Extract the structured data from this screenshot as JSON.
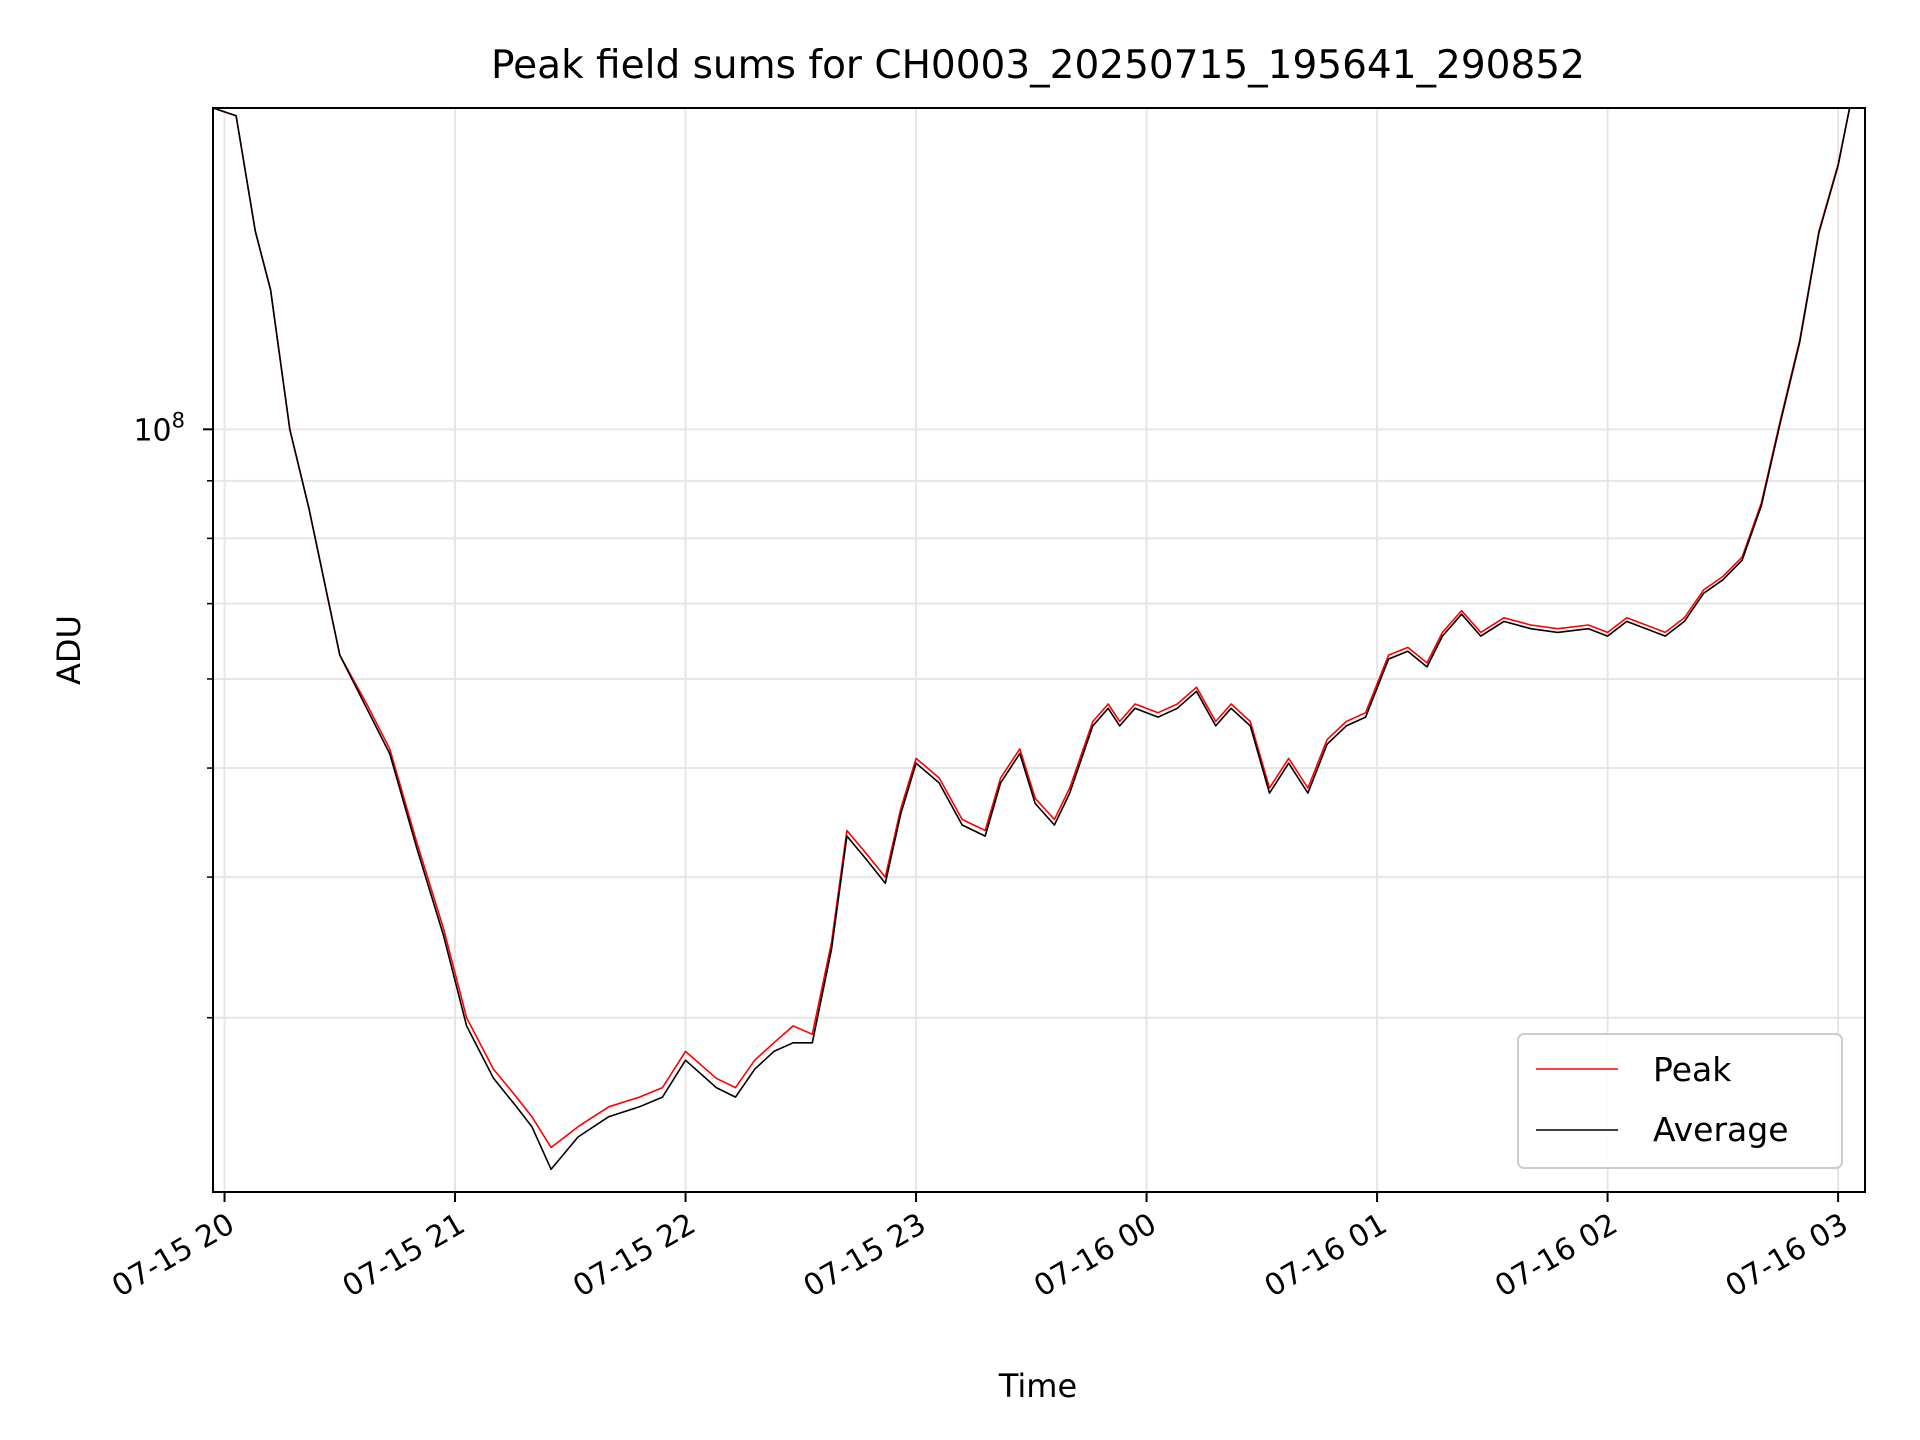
{
  "chart_data": {
    "type": "line",
    "title": "Peak field sums for CH0003_20250715_195641_290852",
    "xlabel": "Time",
    "ylabel": "ADU",
    "y_scale": "log",
    "ylim": [
      21000000,
      193000000
    ],
    "xlim": [
      "2025-07-15 19:57",
      "2025-07-16 03:07"
    ],
    "x_tick_labels": [
      "07-15 20",
      "07-15 21",
      "07-15 22",
      "07-15 23",
      "07-16 00",
      "07-16 01",
      "07-16 02",
      "07-16 03"
    ],
    "x_tick_values": [
      "2025-07-15 20:00",
      "2025-07-15 21:00",
      "2025-07-15 22:00",
      "2025-07-15 23:00",
      "2025-07-16 00:00",
      "2025-07-16 01:00",
      "2025-07-16 02:00",
      "2025-07-16 03:00"
    ],
    "y_tick_labels": [
      {
        "base": "10",
        "exp": "8",
        "value": 100000000
      }
    ],
    "y_minor_ticks": [
      30000000,
      40000000,
      50000000,
      60000000,
      70000000,
      80000000,
      90000000,
      200000000
    ],
    "grid": true,
    "legend_position": "bottom-right",
    "series": [
      {
        "name": "Peak",
        "color": "#ff0000",
        "points": [
          [
            "2025-07-15 19:57",
            193000000
          ],
          [
            "2025-07-15 20:03",
            190000000
          ],
          [
            "2025-07-15 20:08",
            150000000
          ],
          [
            "2025-07-15 20:12",
            133000000
          ],
          [
            "2025-07-15 20:17",
            100000000
          ],
          [
            "2025-07-15 20:22",
            85000000
          ],
          [
            "2025-07-15 20:30",
            63000000
          ],
          [
            "2025-07-15 20:37",
            57000000
          ],
          [
            "2025-07-15 20:43",
            52000000
          ],
          [
            "2025-07-15 20:50",
            43000000
          ],
          [
            "2025-07-15 20:57",
            36000000
          ],
          [
            "2025-07-15 21:03",
            30000000
          ],
          [
            "2025-07-15 21:10",
            27000000
          ],
          [
            "2025-07-15 21:16",
            25500000
          ],
          [
            "2025-07-15 21:20",
            24500000
          ],
          [
            "2025-07-15 21:25",
            23000000
          ],
          [
            "2025-07-15 21:32",
            24000000
          ],
          [
            "2025-07-15 21:40",
            25000000
          ],
          [
            "2025-07-15 21:48",
            25500000
          ],
          [
            "2025-07-15 21:54",
            26000000
          ],
          [
            "2025-07-15 22:00",
            28000000
          ],
          [
            "2025-07-15 22:08",
            26500000
          ],
          [
            "2025-07-15 22:13",
            26000000
          ],
          [
            "2025-07-15 22:18",
            27500000
          ],
          [
            "2025-07-15 22:23",
            28500000
          ],
          [
            "2025-07-15 22:28",
            29500000
          ],
          [
            "2025-07-15 22:33",
            29000000
          ],
          [
            "2025-07-15 22:38",
            35000000
          ],
          [
            "2025-07-15 22:42",
            44000000
          ],
          [
            "2025-07-15 22:47",
            42000000
          ],
          [
            "2025-07-15 22:52",
            40000000
          ],
          [
            "2025-07-15 22:56",
            46000000
          ],
          [
            "2025-07-15 23:00",
            51000000
          ],
          [
            "2025-07-15 23:06",
            49000000
          ],
          [
            "2025-07-15 23:12",
            45000000
          ],
          [
            "2025-07-15 23:18",
            44000000
          ],
          [
            "2025-07-15 23:22",
            49000000
          ],
          [
            "2025-07-15 23:27",
            52000000
          ],
          [
            "2025-07-15 23:31",
            47000000
          ],
          [
            "2025-07-15 23:36",
            45000000
          ],
          [
            "2025-07-15 23:40",
            48000000
          ],
          [
            "2025-07-15 23:46",
            55000000
          ],
          [
            "2025-07-15 23:50",
            57000000
          ],
          [
            "2025-07-15 23:53",
            55000000
          ],
          [
            "2025-07-15 23:57",
            57000000
          ],
          [
            "2025-07-16 00:03",
            56000000
          ],
          [
            "2025-07-16 00:08",
            57000000
          ],
          [
            "2025-07-16 00:13",
            59000000
          ],
          [
            "2025-07-16 00:18",
            55000000
          ],
          [
            "2025-07-16 00:22",
            57000000
          ],
          [
            "2025-07-16 00:27",
            55000000
          ],
          [
            "2025-07-16 00:32",
            48000000
          ],
          [
            "2025-07-16 00:37",
            51000000
          ],
          [
            "2025-07-16 00:42",
            48000000
          ],
          [
            "2025-07-16 00:47",
            53000000
          ],
          [
            "2025-07-16 00:52",
            55000000
          ],
          [
            "2025-07-16 00:57",
            56000000
          ],
          [
            "2025-07-16 01:03",
            63000000
          ],
          [
            "2025-07-16 01:08",
            64000000
          ],
          [
            "2025-07-16 01:13",
            62000000
          ],
          [
            "2025-07-16 01:17",
            66000000
          ],
          [
            "2025-07-16 01:22",
            69000000
          ],
          [
            "2025-07-16 01:27",
            66000000
          ],
          [
            "2025-07-16 01:33",
            68000000
          ],
          [
            "2025-07-16 01:40",
            67000000
          ],
          [
            "2025-07-16 01:47",
            66500000
          ],
          [
            "2025-07-16 01:55",
            67000000
          ],
          [
            "2025-07-16 02:00",
            66000000
          ],
          [
            "2025-07-16 02:05",
            68000000
          ],
          [
            "2025-07-16 02:10",
            67000000
          ],
          [
            "2025-07-16 02:15",
            66000000
          ],
          [
            "2025-07-16 02:20",
            68000000
          ],
          [
            "2025-07-16 02:25",
            72000000
          ],
          [
            "2025-07-16 02:30",
            74000000
          ],
          [
            "2025-07-16 02:35",
            77000000
          ],
          [
            "2025-07-16 02:40",
            86000000
          ],
          [
            "2025-07-16 02:45",
            102000000
          ],
          [
            "2025-07-16 02:50",
            120000000
          ],
          [
            "2025-07-16 02:55",
            150000000
          ],
          [
            "2025-07-16 03:00",
            172000000
          ],
          [
            "2025-07-16 03:03",
            193000000
          ],
          [
            "2025-07-16 03:07",
            193000000
          ]
        ]
      },
      {
        "name": "Average",
        "color": "#000000",
        "points": [
          [
            "2025-07-15 19:57",
            193000000
          ],
          [
            "2025-07-15 20:03",
            190000000
          ],
          [
            "2025-07-15 20:08",
            150000000
          ],
          [
            "2025-07-15 20:12",
            133000000
          ],
          [
            "2025-07-15 20:17",
            100000000
          ],
          [
            "2025-07-15 20:22",
            85000000
          ],
          [
            "2025-07-15 20:30",
            63000000
          ],
          [
            "2025-07-15 20:37",
            56500000
          ],
          [
            "2025-07-15 20:43",
            51500000
          ],
          [
            "2025-07-15 20:50",
            42500000
          ],
          [
            "2025-07-15 20:57",
            35500000
          ],
          [
            "2025-07-15 21:03",
            29500000
          ],
          [
            "2025-07-15 21:10",
            26500000
          ],
          [
            "2025-07-15 21:16",
            25000000
          ],
          [
            "2025-07-15 21:20",
            24000000
          ],
          [
            "2025-07-15 21:25",
            22000000
          ],
          [
            "2025-07-15 21:32",
            23500000
          ],
          [
            "2025-07-15 21:40",
            24500000
          ],
          [
            "2025-07-15 21:48",
            25000000
          ],
          [
            "2025-07-15 21:54",
            25500000
          ],
          [
            "2025-07-15 22:00",
            27500000
          ],
          [
            "2025-07-15 22:08",
            26000000
          ],
          [
            "2025-07-15 22:13",
            25500000
          ],
          [
            "2025-07-15 22:18",
            27000000
          ],
          [
            "2025-07-15 22:23",
            28000000
          ],
          [
            "2025-07-15 22:28",
            28500000
          ],
          [
            "2025-07-15 22:33",
            28500000
          ],
          [
            "2025-07-15 22:38",
            34500000
          ],
          [
            "2025-07-15 22:42",
            43500000
          ],
          [
            "2025-07-15 22:47",
            41500000
          ],
          [
            "2025-07-15 22:52",
            39500000
          ],
          [
            "2025-07-15 22:56",
            45500000
          ],
          [
            "2025-07-15 23:00",
            50500000
          ],
          [
            "2025-07-15 23:06",
            48500000
          ],
          [
            "2025-07-15 23:12",
            44500000
          ],
          [
            "2025-07-15 23:18",
            43500000
          ],
          [
            "2025-07-15 23:22",
            48500000
          ],
          [
            "2025-07-15 23:27",
            51500000
          ],
          [
            "2025-07-15 23:31",
            46500000
          ],
          [
            "2025-07-15 23:36",
            44500000
          ],
          [
            "2025-07-15 23:40",
            47500000
          ],
          [
            "2025-07-15 23:46",
            54500000
          ],
          [
            "2025-07-15 23:50",
            56500000
          ],
          [
            "2025-07-15 23:53",
            54500000
          ],
          [
            "2025-07-15 23:57",
            56500000
          ],
          [
            "2025-07-16 00:03",
            55500000
          ],
          [
            "2025-07-16 00:08",
            56500000
          ],
          [
            "2025-07-16 00:13",
            58500000
          ],
          [
            "2025-07-16 00:18",
            54500000
          ],
          [
            "2025-07-16 00:22",
            56500000
          ],
          [
            "2025-07-16 00:27",
            54500000
          ],
          [
            "2025-07-16 00:32",
            47500000
          ],
          [
            "2025-07-16 00:37",
            50500000
          ],
          [
            "2025-07-16 00:42",
            47500000
          ],
          [
            "2025-07-16 00:47",
            52500000
          ],
          [
            "2025-07-16 00:52",
            54500000
          ],
          [
            "2025-07-16 00:57",
            55500000
          ],
          [
            "2025-07-16 01:03",
            62500000
          ],
          [
            "2025-07-16 01:08",
            63500000
          ],
          [
            "2025-07-16 01:13",
            61500000
          ],
          [
            "2025-07-16 01:17",
            65500000
          ],
          [
            "2025-07-16 01:22",
            68500000
          ],
          [
            "2025-07-16 01:27",
            65500000
          ],
          [
            "2025-07-16 01:33",
            67500000
          ],
          [
            "2025-07-16 01:40",
            66500000
          ],
          [
            "2025-07-16 01:47",
            66000000
          ],
          [
            "2025-07-16 01:55",
            66500000
          ],
          [
            "2025-07-16 02:00",
            65500000
          ],
          [
            "2025-07-16 02:05",
            67500000
          ],
          [
            "2025-07-16 02:10",
            66500000
          ],
          [
            "2025-07-16 02:15",
            65500000
          ],
          [
            "2025-07-16 02:20",
            67500000
          ],
          [
            "2025-07-16 02:25",
            71500000
          ],
          [
            "2025-07-16 02:30",
            73500000
          ],
          [
            "2025-07-16 02:35",
            76500000
          ],
          [
            "2025-07-16 02:40",
            85500000
          ],
          [
            "2025-07-16 02:45",
            101500000
          ],
          [
            "2025-07-16 02:50",
            119500000
          ],
          [
            "2025-07-16 02:55",
            149500000
          ],
          [
            "2025-07-16 03:00",
            171500000
          ],
          [
            "2025-07-16 03:03",
            193000000
          ],
          [
            "2025-07-16 03:07",
            193000000
          ]
        ]
      }
    ]
  }
}
